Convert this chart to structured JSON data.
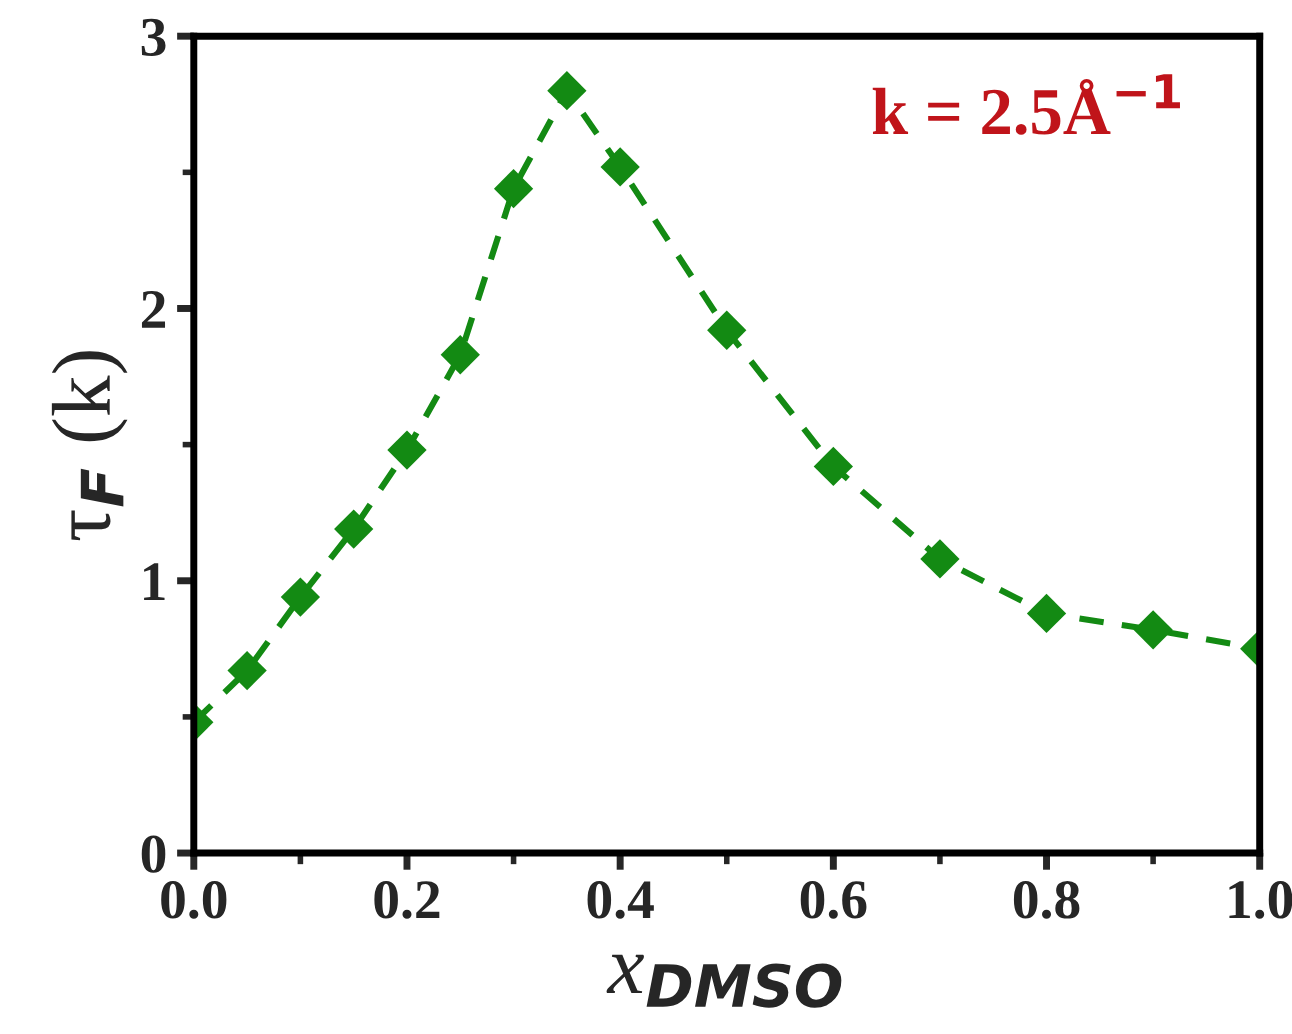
{
  "chart_data": {
    "type": "line",
    "xlabel": "x$_{DMSO}$",
    "ylabel": "τ$_{F}$ (k)",
    "x": [
      0.0,
      0.05,
      0.1,
      0.15,
      0.2,
      0.25,
      0.3,
      0.35,
      0.4,
      0.5,
      0.6,
      0.7,
      0.8,
      0.9,
      1.0
    ],
    "series": [
      {
        "color": "#138a13",
        "values": [
          0.48,
          0.67,
          0.94,
          1.19,
          1.48,
          1.83,
          2.44,
          2.8,
          2.52,
          1.92,
          1.42,
          1.08,
          0.88,
          0.82,
          0.75
        ]
      }
    ],
    "xlim": [
      0,
      1
    ],
    "ylim": [
      0,
      3
    ],
    "xticks": [
      {
        "value": 0,
        "label": "0.0"
      },
      {
        "value": 0.2,
        "label": "0.2"
      },
      {
        "value": 0.4,
        "label": "0.4"
      },
      {
        "value": 0.6,
        "label": "0.6"
      },
      {
        "value": 0.8,
        "label": "0.8"
      },
      {
        "value": 1,
        "label": "1.0"
      }
    ],
    "yticks": [
      0,
      1,
      2,
      3
    ],
    "annotations": [
      "k = 2.5Å$^{−1}$"
    ],
    "marker": "diamond",
    "line_style": "dashed",
    "grid": false,
    "legend": false
  }
}
